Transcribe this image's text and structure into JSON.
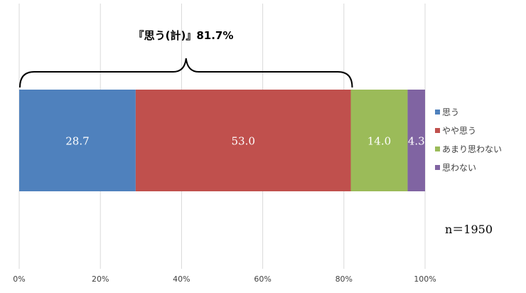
{
  "chart_data": {
    "type": "bar",
    "orientation": "horizontal",
    "stacked": true,
    "x_ticks": [
      "0%",
      "20%",
      "40%",
      "60%",
      "80%",
      "100%"
    ],
    "xlim": [
      0,
      100
    ],
    "grid": true,
    "legend_position": "right",
    "series": [
      {
        "name": "思う",
        "value": 28.7,
        "label": "28.7",
        "color": "#4F81BD"
      },
      {
        "name": "やや思う",
        "value": 53.0,
        "label": "53.0",
        "color": "#C0504D"
      },
      {
        "name": "あまり思わない",
        "value": 14.0,
        "label": "14.0",
        "color": "#9BBB59"
      },
      {
        "name": "思わない",
        "value": 4.3,
        "label": "4.3",
        "color": "#8064A2"
      }
    ],
    "annotation": {
      "text": "『思う(計)』81.7%",
      "from": 0,
      "to": 81.7
    },
    "sample_size": "n＝1950"
  }
}
